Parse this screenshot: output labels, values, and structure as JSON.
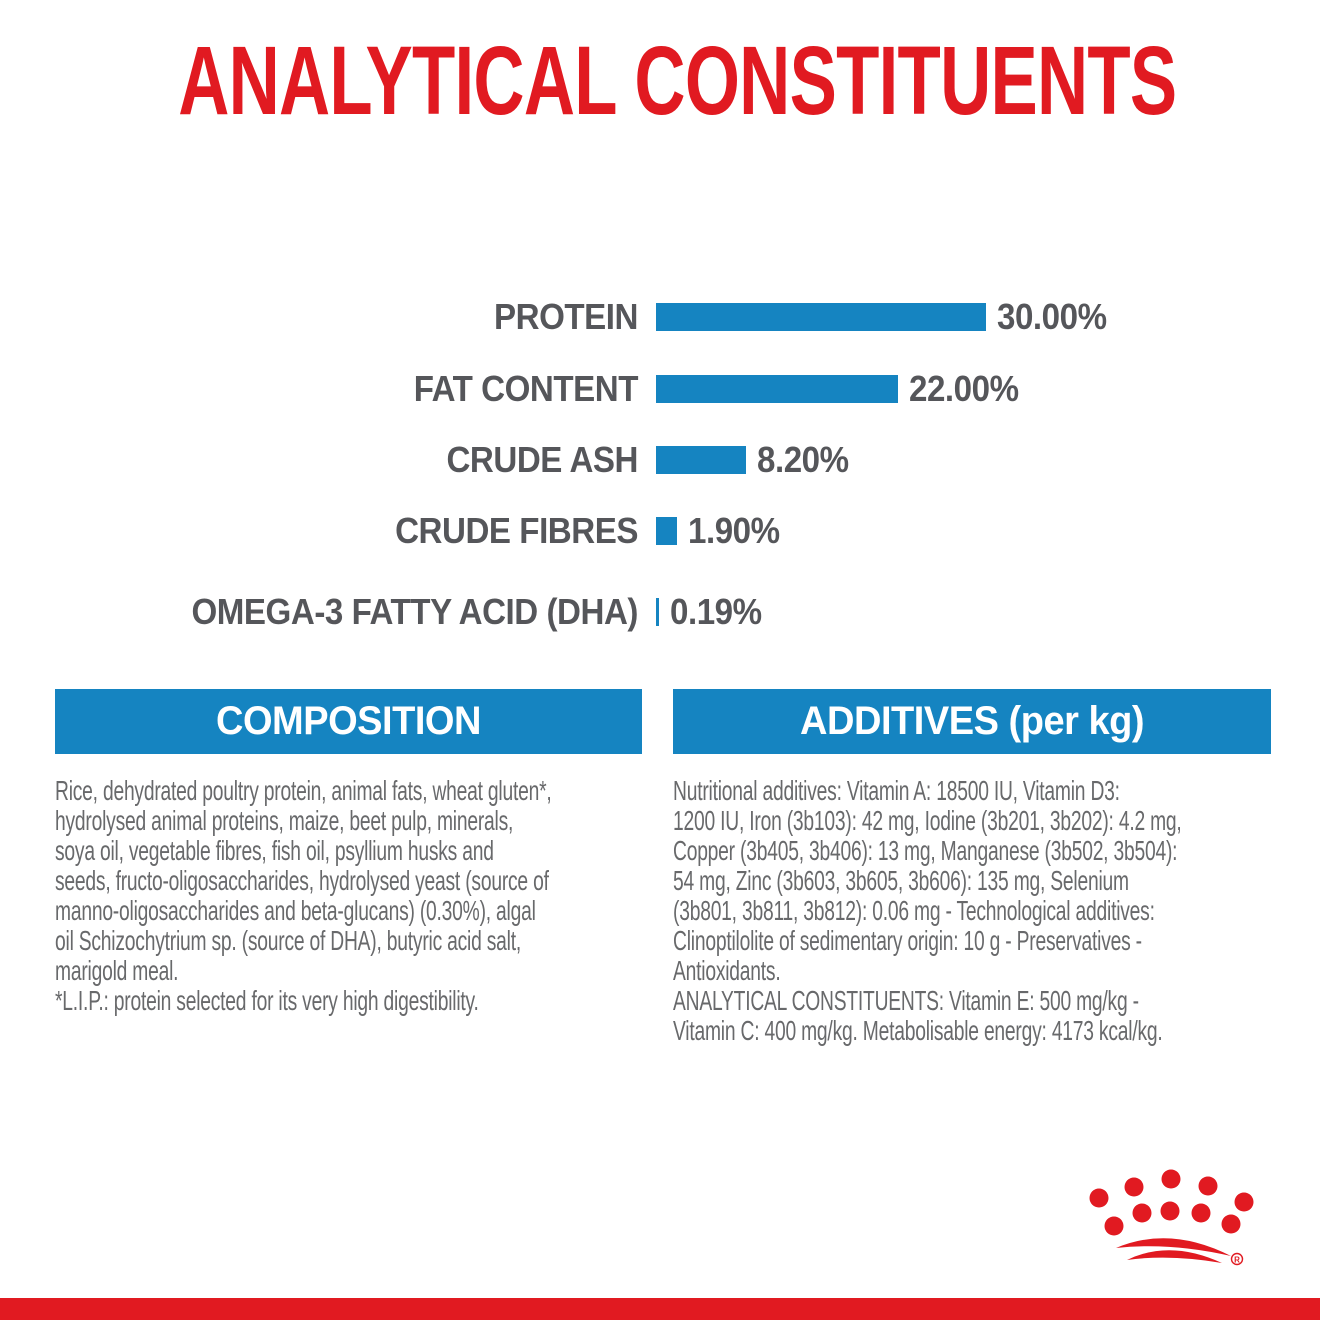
{
  "title": "ANALYTICAL CONSTITUENTS",
  "colors": {
    "brand_red": "#e11a21",
    "bar_blue": "#1584c1",
    "chart_text_gray": "#55565a",
    "body_text_gray": "#68696b"
  },
  "chart_data": {
    "type": "bar",
    "orientation": "horizontal",
    "unit": "%",
    "xlim": [
      0,
      30
    ],
    "grid": false,
    "legend": false,
    "rows": [
      {
        "label": "PROTEIN",
        "value": 30.0,
        "value_label": "30.00%"
      },
      {
        "label": "FAT CONTENT",
        "value": 22.0,
        "value_label": "22.00%"
      },
      {
        "label": "CRUDE ASH",
        "value": 8.2,
        "value_label": "8.20%"
      },
      {
        "label": "CRUDE FIBRES",
        "value": 1.9,
        "value_label": "1.90%"
      },
      {
        "label": "OMEGA-3 FATTY ACID (DHA)",
        "value": 0.19,
        "value_label": "0.19%"
      }
    ]
  },
  "composition": {
    "header": "COMPOSITION",
    "body": "Rice, dehydrated poultry protein, animal fats, wheat gluten*,\nhydrolysed animal proteins, maize, beet pulp, minerals,\nsoya oil, vegetable fibres, fish oil, psyllium husks and\nseeds, fructo-oligosaccharides, hydrolysed yeast (source of\nmanno-oligosaccharides and beta-glucans) (0.30%), algal\noil Schizochytrium sp. (source of DHA), butyric acid salt,\nmarigold meal.\n*L.I.P.: protein selected for its very high digestibility."
  },
  "additives": {
    "header": "ADDITIVES (per kg)",
    "body": "Nutritional additives: Vitamin A: 18500 IU, Vitamin D3:\n1200 IU, Iron (3b103): 42 mg, Iodine (3b201, 3b202): 4.2 mg,\nCopper (3b405, 3b406): 13 mg, Manganese (3b502, 3b504):\n54 mg, Zinc (3b603, 3b605, 3b606): 135 mg, Selenium\n(3b801, 3b811, 3b812): 0.06 mg - Technological additives:\nClinoptilolite of sedimentary origin: 10 g - Preservatives -\nAntioxidants.\nANALYTICAL CONSTITUENTS: Vitamin E: 500 mg/kg -\nVitamin C: 400 mg/kg. Metabolisable energy: 4173 kcal/kg."
  },
  "logo": {
    "name": "royal-canin-crown-logo",
    "registered_mark": "®"
  }
}
